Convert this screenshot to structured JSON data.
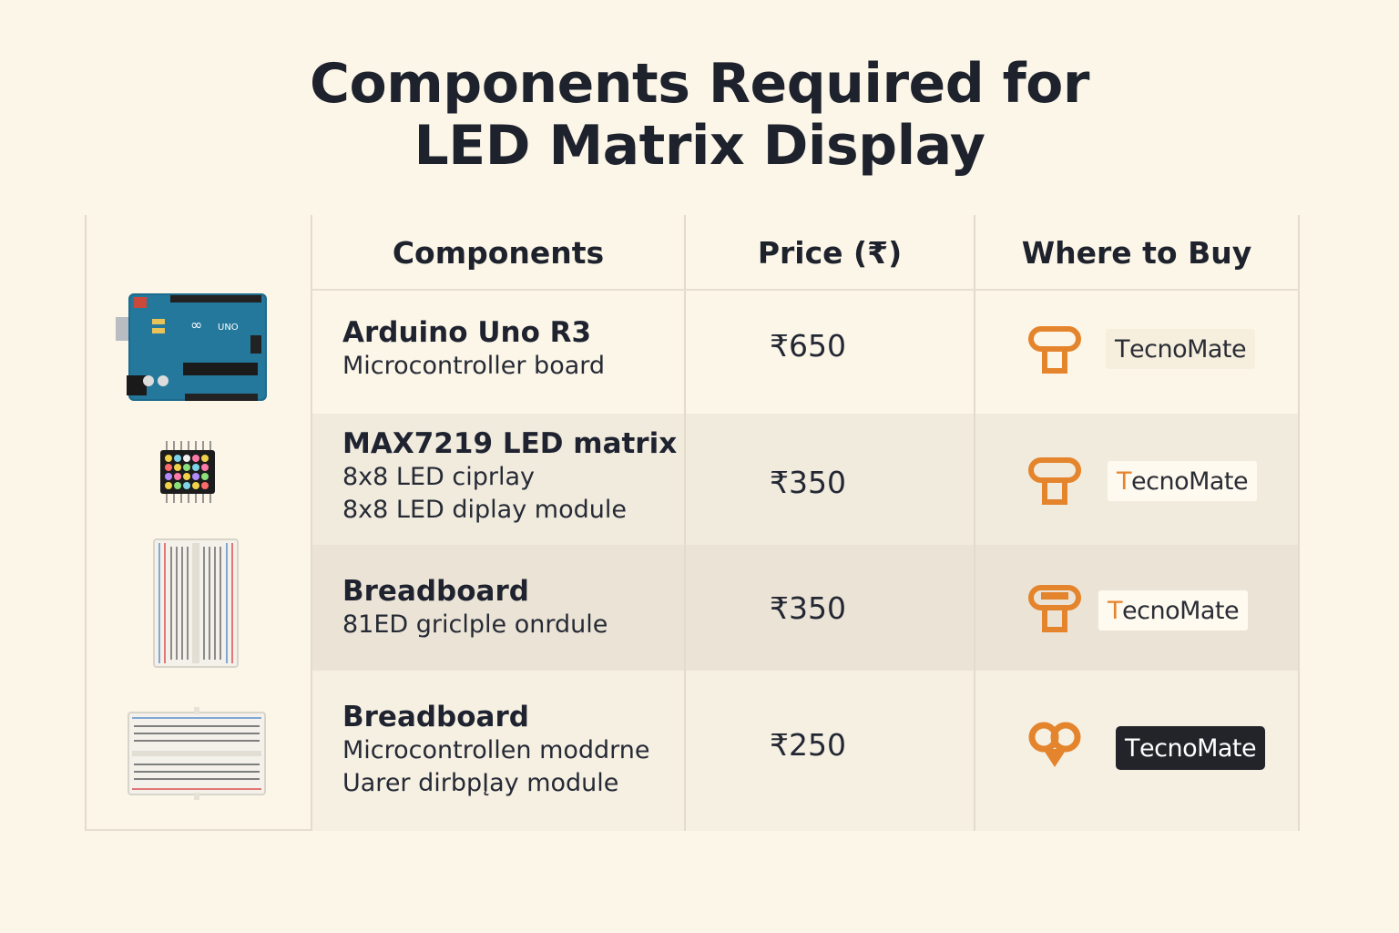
{
  "title": {
    "line1": "Components Required for",
    "line2": "LED Matrix Display"
  },
  "headers": {
    "components": "Components",
    "price": "Price (₹)",
    "where": "Where to Buy"
  },
  "rows": [
    {
      "image_icon": "arduino-board-icon",
      "name": "Arduino Uno R3",
      "desc1": "Microcontroller board",
      "desc2": "",
      "price": "₹650",
      "vendor_first": "T",
      "vendor_rest": "ecnoMate"
    },
    {
      "image_icon": "led-matrix-icon",
      "name": "MAX7219 LED matrix",
      "desc1": "8x8 LED ciprlay",
      "desc2": "8x8 LED diplay module",
      "price": "₹350",
      "vendor_first": "T",
      "vendor_rest": "ecnoMate"
    },
    {
      "image_icon": "breadboard-vertical-icon",
      "name": "Breadboard",
      "desc1": "81ED griclple onrdule",
      "desc2": "",
      "price": "₹350",
      "vendor_first": "T",
      "vendor_rest": "ecnoMate"
    },
    {
      "image_icon": "breadboard-horizontal-icon",
      "name": "Breadboard",
      "desc1": "Microcontrollen moddrne",
      "desc2": "Uarer dirbpĮay module",
      "price": "₹250",
      "vendor_first": "T",
      "vendor_rest": "ecnoMate"
    }
  ],
  "colors": {
    "background": "#fcf6e8",
    "accent_orange": "#e4842c",
    "row_band": "#f1ebde",
    "row_band_dark": "#ebe4d6"
  }
}
